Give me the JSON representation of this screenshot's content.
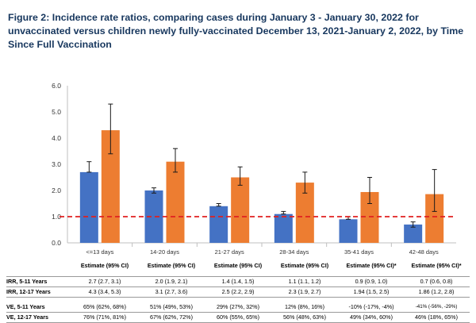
{
  "title": "Figure 2:  Incidence rate ratios, comparing cases during January 3 - January 30, 2022 for unvaccinated versus children newly fully-vaccinated December 13, 2021-January 2, 2022, by Time Since Full Vaccination",
  "colors": {
    "series_5_11": "#4472c4",
    "series_12_17": "#ed7d31",
    "reference": "#e02020",
    "error": "#1a1a1a"
  },
  "chart_data": {
    "type": "bar",
    "categories": [
      "<=13 days",
      "14-20 days",
      "21-27 days",
      "28-34 days",
      "35-41 days",
      "42-48 days"
    ],
    "series": [
      {
        "name": "IRR, 5-11 Years",
        "values": [
          2.7,
          2.0,
          1.4,
          1.1,
          0.9,
          0.7
        ],
        "lower": [
          2.7,
          1.9,
          1.4,
          1.1,
          0.9,
          0.6
        ],
        "upper": [
          3.1,
          2.1,
          1.5,
          1.2,
          1.0,
          0.8
        ]
      },
      {
        "name": "IRR, 12-17 Years",
        "values": [
          4.3,
          3.1,
          2.5,
          2.3,
          1.94,
          1.86
        ],
        "lower": [
          3.4,
          2.7,
          2.2,
          1.9,
          1.5,
          1.2
        ],
        "upper": [
          5.3,
          3.6,
          2.9,
          2.7,
          2.5,
          2.8
        ]
      }
    ],
    "reference_line": 1.0,
    "ylim": [
      0,
      6
    ],
    "yticks": [
      "0.0",
      "1.0",
      "2.0",
      "3.0",
      "4.0",
      "5.0",
      "6.0"
    ],
    "xlabel": "",
    "ylabel": ""
  },
  "table": {
    "headers": [
      "Estimate (95% CI)",
      "Estimate (95% CI)",
      "Estimate (95% CI)",
      "Estimate (95% CI)",
      "Estimate (95% CI)*",
      "Estimate (95% CI)*"
    ],
    "rows": [
      {
        "label": "IRR, 5-11 Years",
        "cells": [
          "2.7 (2.7, 3.1)",
          "2.0 (1.9, 2.1)",
          "1.4 (1.4, 1.5)",
          "1.1 (1.1, 1.2)",
          "0.9 (0.9, 1.0)",
          "0.7 (0.6, 0.8)"
        ]
      },
      {
        "label": "IRR, 12-17 Years",
        "cells": [
          "4.3 (3.4, 5.3)",
          "3.1 (2.7, 3.6)",
          "2.5 (2.2, 2.9)",
          "2.3 (1.9, 2.7)",
          "1.94 (1.5, 2.5)",
          "1.86 (1.2, 2.8)"
        ]
      },
      {
        "label": "VE, 5-11 Years",
        "cells": [
          "65% (62%, 68%)",
          "51% (49%, 53%)",
          "29% (27%, 32%)",
          "12% (8%, 16%)",
          "-10% (-17%, -4%)",
          "-41% (-56%, -29%)"
        ]
      },
      {
        "label": "VE, 12-17 Years",
        "cells": [
          "76% (71%, 81%)",
          "67% (62%, 72%)",
          "60% (55%, 65%)",
          "56% (48%, 63%)",
          "49% (34%, 60%)",
          "46% (18%, 65%)"
        ]
      }
    ]
  }
}
